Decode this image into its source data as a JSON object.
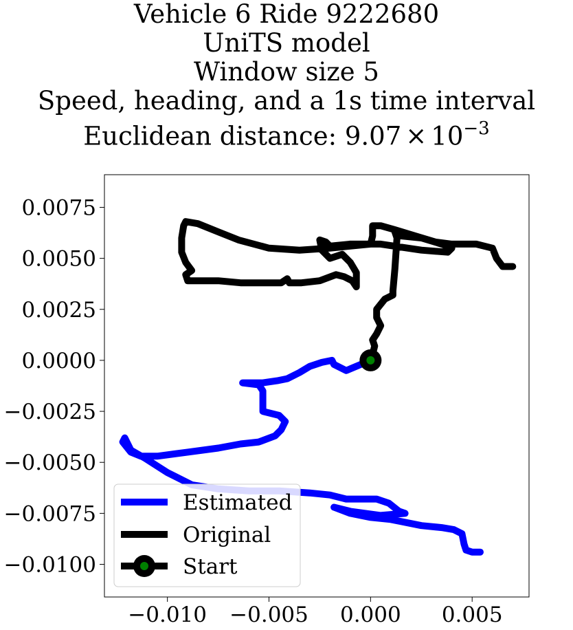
{
  "chart_data": {
    "type": "line",
    "title_lines": [
      "Vehicle 6 Ride 9222680",
      "UniTS model",
      "Window size 5",
      "Speed, heading, and a 1s time interval"
    ],
    "title_metric_prefix": "Euclidean distance: ",
    "title_metric_mantissa": "9.07",
    "title_metric_times": "×",
    "title_metric_base": "10",
    "title_metric_exponent": "−3",
    "xlim": [
      -0.0131,
      0.0078
    ],
    "ylim": [
      -0.0116,
      0.0091
    ],
    "xticks": [
      -0.01,
      -0.005,
      0.0,
      0.005
    ],
    "xtick_labels": [
      "−0.010",
      "−0.005",
      "0.000",
      "0.005"
    ],
    "yticks": [
      0.0075,
      0.005,
      0.0025,
      0.0,
      -0.0025,
      -0.005,
      -0.0075,
      -0.01
    ],
    "ytick_labels": [
      "0.0075",
      "0.0050",
      "0.0025",
      "0.0000",
      "−0.0025",
      "−0.0050",
      "−0.0075",
      "−0.0100"
    ],
    "grid": false,
    "legend_position": "lower-left",
    "series": [
      {
        "name": "Estimated",
        "color": "#0000ff",
        "points": [
          [
            0.0,
            0.0
          ],
          [
            -0.0012,
            -0.0005
          ],
          [
            -0.0018,
            -0.0002
          ],
          [
            -0.0019,
            0.0
          ],
          [
            -0.0024,
            -0.0001
          ],
          [
            -0.003,
            -0.0003
          ],
          [
            -0.0035,
            -0.0006
          ],
          [
            -0.0041,
            -0.0009
          ],
          [
            -0.0046,
            -0.001
          ],
          [
            -0.0053,
            -0.0011
          ],
          [
            -0.0063,
            -0.0011
          ],
          [
            -0.0055,
            -0.0012
          ],
          [
            -0.0053,
            -0.0015
          ],
          [
            -0.0053,
            -0.0025
          ],
          [
            -0.0045,
            -0.0027
          ],
          [
            -0.0042,
            -0.003
          ],
          [
            -0.0044,
            -0.0034
          ],
          [
            -0.0047,
            -0.0037
          ],
          [
            -0.0055,
            -0.004
          ],
          [
            -0.0064,
            -0.0041
          ],
          [
            -0.0075,
            -0.0043
          ],
          [
            -0.009,
            -0.0045
          ],
          [
            -0.0105,
            -0.0047
          ],
          [
            -0.0113,
            -0.0047
          ],
          [
            -0.0118,
            -0.0045
          ],
          [
            -0.0122,
            -0.004
          ],
          [
            -0.0121,
            -0.0038
          ],
          [
            -0.0118,
            -0.0044
          ],
          [
            -0.0111,
            -0.0048
          ],
          [
            -0.01,
            -0.0055
          ],
          [
            -0.0088,
            -0.0061
          ],
          [
            -0.0075,
            -0.0063
          ],
          [
            -0.006,
            -0.0064
          ],
          [
            -0.0045,
            -0.0064
          ],
          [
            -0.003,
            -0.0065
          ],
          [
            -0.002,
            -0.0066
          ],
          [
            -0.0012,
            -0.0068
          ],
          [
            0.0003,
            -0.0068
          ],
          [
            0.0009,
            -0.007
          ],
          [
            0.0014,
            -0.0074
          ],
          [
            0.0017,
            -0.0075
          ],
          [
            0.0005,
            -0.0076
          ],
          [
            -0.001,
            -0.0074
          ],
          [
            -0.0018,
            -0.0072
          ],
          [
            -0.001,
            -0.0075
          ],
          [
            0.0,
            -0.0077
          ],
          [
            0.001,
            -0.0078
          ],
          [
            0.0025,
            -0.0081
          ],
          [
            0.0035,
            -0.0082
          ],
          [
            0.0041,
            -0.0083
          ],
          [
            0.0045,
            -0.0085
          ],
          [
            0.0046,
            -0.009
          ],
          [
            0.0047,
            -0.0093
          ],
          [
            0.005,
            -0.0094
          ],
          [
            0.0054,
            -0.0094
          ]
        ]
      },
      {
        "name": "Original",
        "color": "#000000",
        "points": [
          [
            0.0,
            0.0
          ],
          [
            0.0001,
            0.0003
          ],
          [
            0.0002,
            0.0007
          ],
          [
            0.0001,
            0.001
          ],
          [
            0.0003,
            0.0013
          ],
          [
            0.0005,
            0.0017
          ],
          [
            0.0003,
            0.0021
          ],
          [
            0.0003,
            0.0025
          ],
          [
            0.0007,
            0.003
          ],
          [
            0.0011,
            0.0032
          ],
          [
            0.0011,
            0.0034
          ],
          [
            0.0012,
            0.0045
          ],
          [
            0.0013,
            0.006
          ],
          [
            0.0012,
            0.0063
          ],
          [
            0.0015,
            0.0061
          ],
          [
            0.0025,
            0.006
          ],
          [
            0.0035,
            0.0057
          ],
          [
            0.004,
            0.0055
          ],
          [
            0.0038,
            0.0053
          ],
          [
            0.0025,
            0.0054
          ],
          [
            0.0005,
            0.0057
          ],
          [
            -0.001,
            0.0057
          ],
          [
            -0.002,
            0.0056
          ],
          [
            -0.0022,
            0.0058
          ],
          [
            -0.0025,
            0.0059
          ],
          [
            -0.0024,
            0.0054
          ],
          [
            -0.002,
            0.005
          ],
          [
            -0.0014,
            0.0052
          ],
          [
            -0.001,
            0.0048
          ],
          [
            -0.0007,
            0.0043
          ],
          [
            -0.0007,
            0.0036
          ],
          [
            -0.0009,
            0.0039
          ],
          [
            -0.0013,
            0.0041
          ],
          [
            -0.0017,
            0.0042
          ],
          [
            -0.0025,
            0.0039
          ],
          [
            -0.0034,
            0.0038
          ],
          [
            -0.004,
            0.0038
          ],
          [
            -0.0041,
            0.004
          ],
          [
            -0.0044,
            0.0038
          ],
          [
            -0.0055,
            0.0038
          ],
          [
            -0.0064,
            0.0038
          ],
          [
            -0.0075,
            0.0039
          ],
          [
            -0.0083,
            0.0039
          ],
          [
            -0.009,
            0.0039
          ],
          [
            -0.0091,
            0.0042
          ],
          [
            -0.0088,
            0.0044
          ],
          [
            -0.0091,
            0.0048
          ],
          [
            -0.0093,
            0.0053
          ],
          [
            -0.0093,
            0.006
          ],
          [
            -0.0092,
            0.0066
          ],
          [
            -0.0091,
            0.0068
          ],
          [
            -0.0085,
            0.0067
          ],
          [
            -0.0075,
            0.0063
          ],
          [
            -0.0065,
            0.0059
          ],
          [
            -0.005,
            0.0055
          ],
          [
            -0.0035,
            0.0054
          ],
          [
            -0.002,
            0.0055
          ],
          [
            -0.001,
            0.0056
          ],
          [
            0.0,
            0.0057
          ],
          [
            0.0001,
            0.0061
          ],
          [
            0.0001,
            0.0066
          ],
          [
            0.0005,
            0.0066
          ],
          [
            0.0012,
            0.0064
          ],
          [
            0.0022,
            0.0061
          ],
          [
            0.0032,
            0.0058
          ],
          [
            0.004,
            0.0057
          ],
          [
            0.0052,
            0.0057
          ],
          [
            0.006,
            0.0055
          ],
          [
            0.0062,
            0.005
          ],
          [
            0.0065,
            0.0046
          ],
          [
            0.007,
            0.0046
          ]
        ]
      }
    ],
    "start_point": {
      "name": "Start",
      "x": 0.0,
      "y": 0.0,
      "outer_color": "#000000",
      "inner_color": "#008000"
    }
  }
}
